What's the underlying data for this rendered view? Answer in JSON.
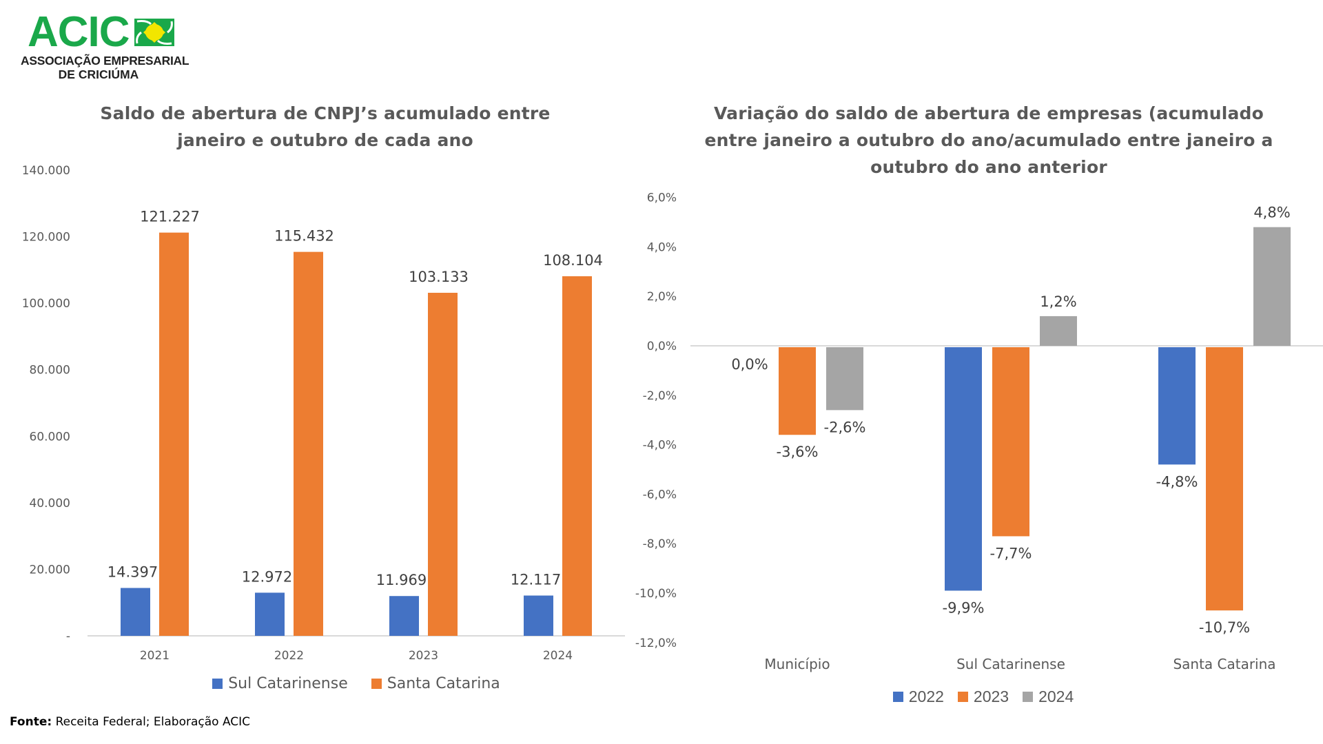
{
  "logo": {
    "name": "ACIC",
    "subtitle_line1": "ASSOCIAÇÃO EMPRESARIAL",
    "subtitle_line2": "DE CRICIÚMA",
    "colors": {
      "green": "#1aa84a",
      "yellow": "#f2e600"
    }
  },
  "source": {
    "label": "Fonte:",
    "text": "Receita Federal; Elaboração ACIC"
  },
  "chart_data": [
    {
      "type": "bar",
      "title": "Saldo de abertura de CNPJ’s acumulado entre janeiro e outubro de cada ano",
      "title_lines": [
        "Saldo de abertura de CNPJ’s acumulado entre",
        "janeiro e outubro de cada ano"
      ],
      "xlabel": "",
      "ylabel": "",
      "categories": [
        "2021",
        "2022",
        "2023",
        "2024"
      ],
      "series": [
        {
          "name": "Sul Catarinense",
          "color": "#4472c4",
          "values": [
            14397,
            12972,
            11969,
            12117
          ],
          "labels": [
            "14.397",
            "12.972",
            "11.969",
            "12.117"
          ]
        },
        {
          "name": "Santa Catarina",
          "color": "#ed7d31",
          "values": [
            121227,
            115432,
            103133,
            108104
          ],
          "labels": [
            "121.227",
            "115.432",
            "103.133",
            "108.104"
          ]
        }
      ],
      "ylim": [
        0,
        140000
      ],
      "yticks": [
        0,
        20000,
        40000,
        60000,
        80000,
        100000,
        120000,
        140000
      ],
      "ytick_labels": [
        "-",
        "20.000",
        "40.000",
        "60.000",
        "80.000",
        "100.000",
        "120.000",
        "140.000"
      ],
      "grid": false,
      "legend": "bottom"
    },
    {
      "type": "bar",
      "title": "Variação do saldo de abertura de empresas (acumulado entre janeiro a outubro do ano/acumulado entre janeiro a outubro do ano anterior",
      "title_lines": [
        "Variação do saldo de abertura de empresas (acumulado",
        "entre janeiro a outubro do ano/acumulado entre janeiro a",
        "outubro do ano anterior"
      ],
      "xlabel": "",
      "ylabel": "",
      "categories": [
        "Município",
        "Sul Catarinense",
        "Santa Catarina"
      ],
      "series": [
        {
          "name": "2022",
          "color": "#4472c4",
          "values": [
            0.0,
            -9.9,
            -4.8
          ],
          "labels": [
            "0,0%",
            "-9,9%",
            "-4,8%"
          ]
        },
        {
          "name": "2023",
          "color": "#ed7d31",
          "values": [
            -3.6,
            -7.7,
            -10.7
          ],
          "labels": [
            "-3,6%",
            "-7,7%",
            "-10,7%"
          ]
        },
        {
          "name": "2024",
          "color": "#a5a5a5",
          "values": [
            -2.6,
            1.2,
            4.8
          ],
          "labels": [
            "-2,6%",
            "1,2%",
            "4,8%"
          ]
        }
      ],
      "ylim": [
        -12,
        6
      ],
      "yticks": [
        6,
        4,
        2,
        0,
        -2,
        -4,
        -6,
        -8,
        -10,
        -12
      ],
      "ytick_labels": [
        "6,0%",
        "4,0%",
        "2,0%",
        "0,0%",
        "-2,0%",
        "-4,0%",
        "-6,0%",
        "-8,0%",
        "-10,0%",
        "-12,0%"
      ],
      "grid": false,
      "legend": "bottom"
    }
  ]
}
